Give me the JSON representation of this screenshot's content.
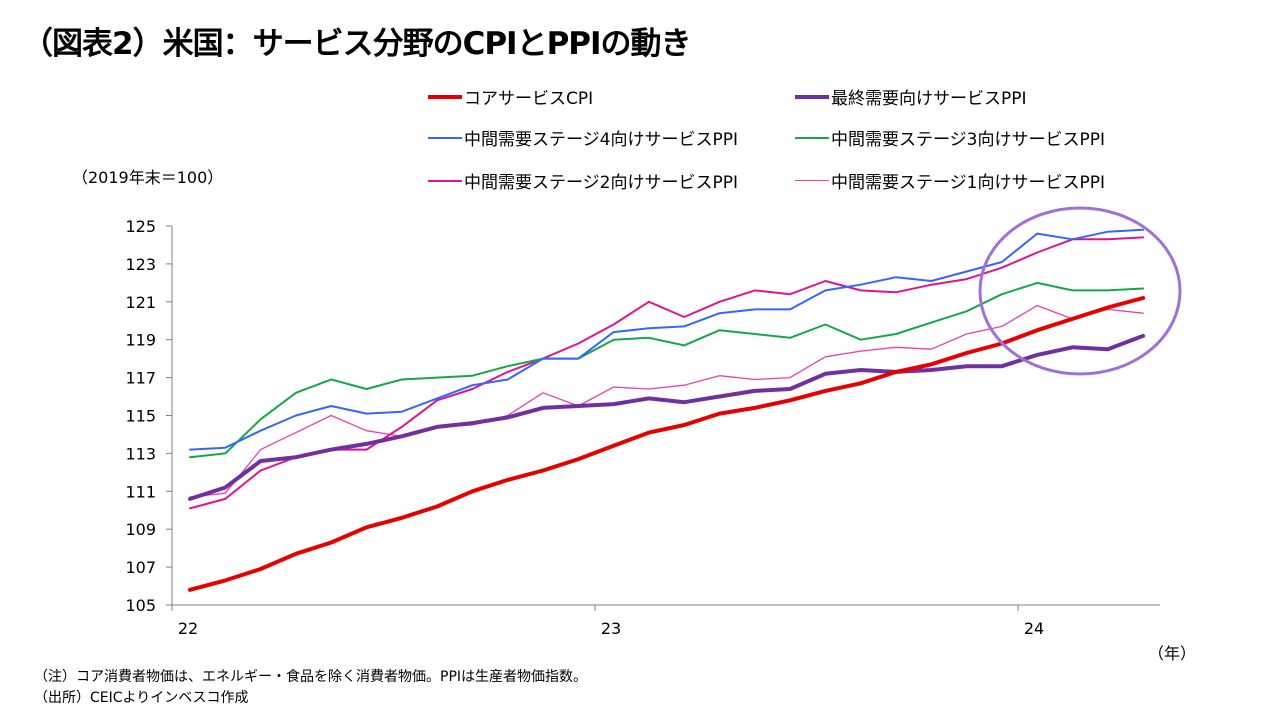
{
  "title": "（図表2）米国：サービス分野のCPIとPPIの動き",
  "unit_label": "（2019年末＝100）",
  "year_unit": "（年）",
  "notes": [
    "（注）コア消費者物価は、エネルギー・食品を除く消費者物価。PPIは生産者物価指数。",
    "（出所）CEICよりインベスコ作成"
  ],
  "chart_data": {
    "type": "line",
    "x_ticks": [
      "22",
      "23",
      "24"
    ],
    "ylim": [
      105,
      125
    ],
    "y_ticks": [
      105,
      107,
      109,
      111,
      113,
      115,
      117,
      119,
      121,
      123,
      125
    ],
    "grid": false,
    "legend_position": "top",
    "highlight": "circle around the most recent months (early 2024)",
    "series": [
      {
        "name": "コアサービスCPI",
        "color": "#e60000",
        "width": 4,
        "values": [
          105.8,
          106.3,
          106.9,
          107.7,
          108.3,
          109.1,
          109.6,
          110.2,
          111.0,
          111.6,
          112.1,
          112.7,
          113.4,
          114.1,
          114.5,
          115.1,
          115.4,
          115.8,
          116.3,
          116.7,
          117.3,
          117.7,
          118.3,
          118.8,
          119.5,
          120.1,
          120.7,
          121.2
        ]
      },
      {
        "name": "最終需要向けサービスPPI",
        "color": "#7030a0",
        "width": 4,
        "values": [
          110.6,
          111.2,
          112.6,
          112.8,
          113.2,
          113.5,
          113.9,
          114.4,
          114.6,
          114.9,
          115.4,
          115.5,
          115.6,
          115.9,
          115.7,
          116.0,
          116.3,
          116.4,
          117.2,
          117.4,
          117.3,
          117.4,
          117.6,
          117.6,
          118.2,
          118.6,
          118.5,
          119.2
        ]
      },
      {
        "name": "中間需要ステージ4向けサービスPPI",
        "color": "#3366ff",
        "width": 2,
        "values": [
          113.2,
          113.3,
          114.2,
          115.0,
          115.5,
          115.1,
          115.2,
          115.9,
          116.6,
          116.9,
          118.0,
          118.0,
          119.4,
          119.6,
          119.7,
          120.4,
          120.6,
          120.6,
          121.6,
          121.9,
          122.3,
          122.1,
          122.6,
          123.1,
          124.6,
          124.3,
          124.7,
          124.8
        ]
      },
      {
        "name": "中間需要ステージ3向けサービスPPI",
        "color": "#14a84a",
        "width": 2,
        "values": [
          112.8,
          113.0,
          114.8,
          116.2,
          116.9,
          116.4,
          116.9,
          117.0,
          117.1,
          117.6,
          118.0,
          118.0,
          119.0,
          119.1,
          118.7,
          119.5,
          119.3,
          119.1,
          119.8,
          119.0,
          119.3,
          119.9,
          120.5,
          121.4,
          122.0,
          121.6,
          121.6,
          121.7
        ]
      },
      {
        "name": "中間需要ステージ2向けサービスPPI",
        "color": "#e0148c",
        "width": 2,
        "values": [
          110.1,
          110.6,
          112.1,
          112.8,
          113.2,
          113.2,
          114.4,
          115.8,
          116.4,
          117.3,
          118.0,
          118.8,
          119.8,
          121.0,
          120.2,
          121.0,
          121.6,
          121.4,
          122.1,
          121.6,
          121.5,
          121.9,
          122.2,
          122.8,
          123.6,
          124.3,
          124.3,
          124.4
        ]
      },
      {
        "name": "中間需要ステージ1向けサービスPPI",
        "color": "#ee3fa8",
        "width": 1.3,
        "values": [
          110.7,
          110.9,
          113.2,
          114.1,
          115.0,
          114.2,
          113.9,
          114.4,
          114.5,
          115.0,
          116.2,
          115.5,
          116.5,
          116.4,
          116.6,
          117.1,
          116.9,
          117.0,
          118.1,
          118.4,
          118.6,
          118.5,
          119.3,
          119.7,
          120.8,
          120.1,
          120.6,
          120.4
        ]
      }
    ]
  }
}
